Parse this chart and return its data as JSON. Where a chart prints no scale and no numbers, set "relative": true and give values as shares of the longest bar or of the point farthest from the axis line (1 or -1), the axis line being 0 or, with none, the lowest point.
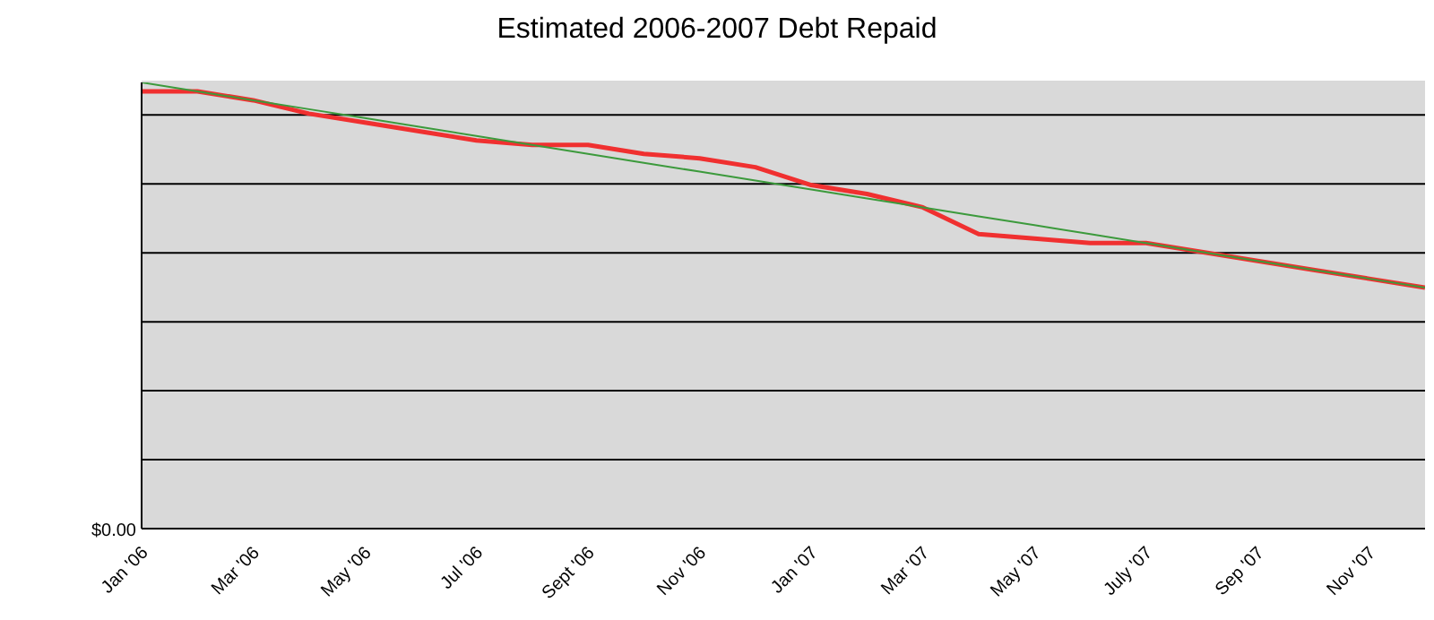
{
  "chart_data": {
    "type": "line",
    "title": "Estimated 2006-2007 Debt Repaid",
    "relative": true,
    "categories": [
      "Jan '06",
      null,
      "Mar '06",
      null,
      "May '06",
      null,
      "Jul '06",
      null,
      "Sept '06",
      null,
      "Nov '06",
      null,
      "Jan '07",
      null,
      "Mar '07",
      null,
      "May '07",
      null,
      "July '07",
      null,
      "Sep '07",
      null,
      "Nov '07",
      null
    ],
    "series": [
      {
        "color": "#f03030",
        "values": [
          0.98,
          0.98,
          0.96,
          0.93,
          0.91,
          0.89,
          0.87,
          0.86,
          0.86,
          0.84,
          0.83,
          0.81,
          0.77,
          0.75,
          0.72,
          0.66,
          0.65,
          0.64,
          0.64,
          0.62,
          0.6,
          0.58,
          0.56,
          0.54
        ]
      },
      {
        "color": "#3c9a3c",
        "values": [
          1.0,
          0.98,
          0.96,
          0.94,
          0.92,
          0.9,
          0.88,
          0.86,
          0.84,
          0.82,
          0.8,
          0.78,
          0.76,
          0.74,
          0.72,
          0.7,
          0.68,
          0.66,
          0.64,
          0.62,
          0.6,
          0.58,
          0.56,
          0.54
        ]
      }
    ],
    "annotations": [
      "$0.00"
    ],
    "grid": "y",
    "legend": false,
    "marker": "none",
    "line_style": "solid"
  }
}
